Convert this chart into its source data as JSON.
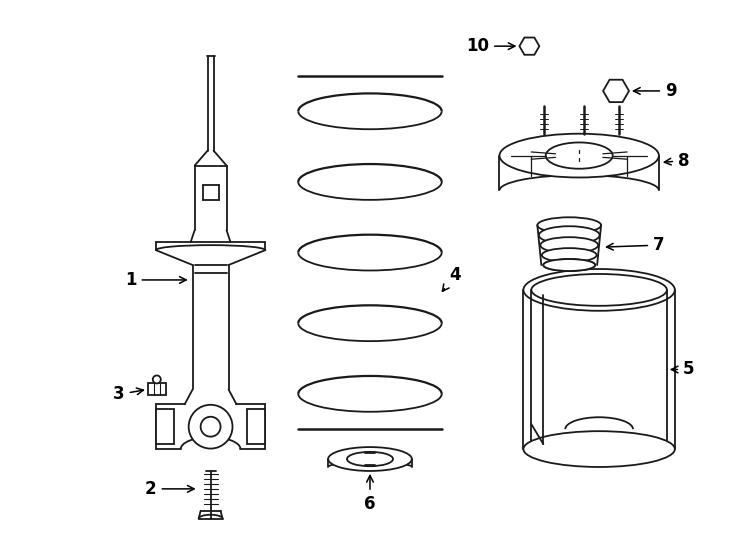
{
  "background_color": "#ffffff",
  "line_color": "#1a1a1a",
  "line_width": 1.3,
  "label_fontsize": 12,
  "figsize": [
    7.34,
    5.4
  ],
  "dpi": 100
}
